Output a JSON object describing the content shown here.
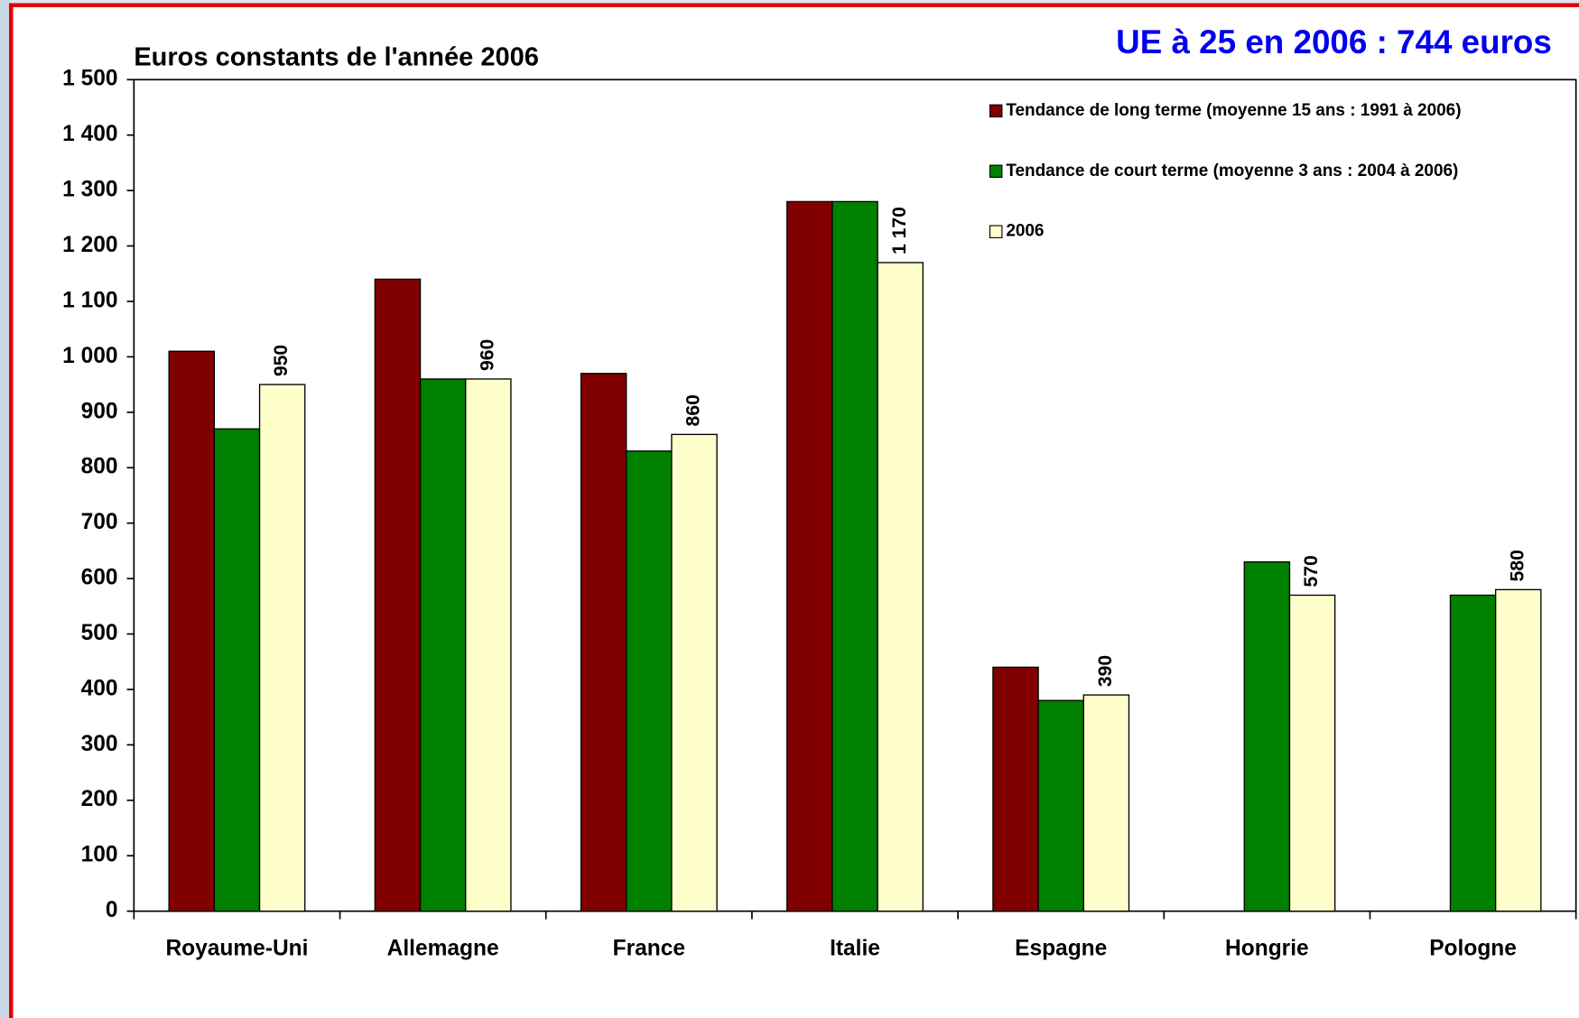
{
  "chart_data": {
    "type": "bar",
    "title": "Euros constants de l'année 2006",
    "annotation": "UE à 25 en 2006 : 744 euros",
    "categories": [
      "Royaume-Uni",
      "Allemagne",
      "France",
      "Italie",
      "Espagne",
      "Hongrie",
      "Pologne"
    ],
    "series": [
      {
        "name": "Tendance de long terme (moyenne 15 ans : 1991 à 2006)",
        "color": "#800000",
        "values": [
          1010,
          1140,
          970,
          1280,
          440,
          null,
          null
        ]
      },
      {
        "name": "Tendance de court terme (moyenne 3 ans : 2004 à 2006)",
        "color": "#008000",
        "values": [
          870,
          960,
          830,
          1280,
          380,
          630,
          570
        ]
      },
      {
        "name": "2006",
        "color": "#ffffcc",
        "values": [
          950,
          960,
          860,
          1170,
          390,
          570,
          580
        ],
        "value_labels": [
          "950",
          "960",
          "860",
          "1 170",
          "390",
          "570",
          "580"
        ]
      }
    ],
    "ylim": [
      0,
      1500
    ],
    "yticks": [
      0,
      100,
      200,
      300,
      400,
      500,
      600,
      700,
      800,
      900,
      {
        "value": 1000,
        "label": "1 000"
      },
      {
        "value": 1100,
        "label": "1 100"
      },
      {
        "value": 1200,
        "label": "1 200"
      },
      {
        "value": 1300,
        "label": "1 300"
      },
      {
        "value": 1400,
        "label": "1 400"
      },
      {
        "value": 1500,
        "label": "1 500"
      }
    ],
    "grid": false,
    "legend": "top-right"
  }
}
